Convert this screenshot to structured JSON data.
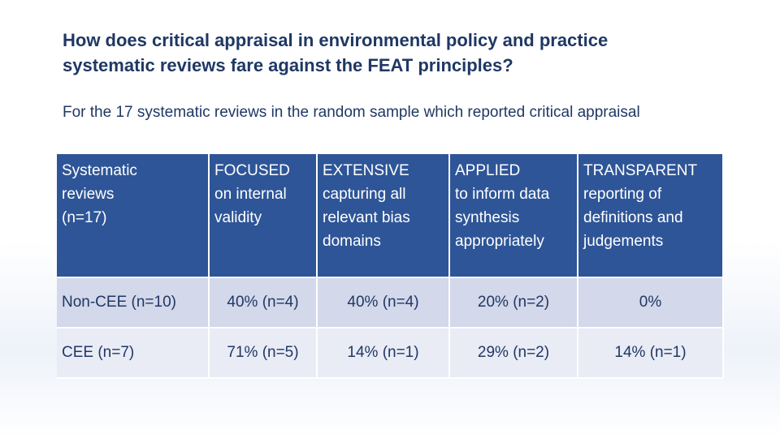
{
  "slide": {
    "title_line1": "How does critical appraisal in environmental policy and practice",
    "title_line2": "systematic reviews fare against the FEAT principles?",
    "subtitle": "For the 17 systematic reviews in the random sample which reported critical appraisal"
  },
  "table": {
    "header": {
      "stub": [
        "Systematic",
        "reviews",
        "(n=17)"
      ],
      "focused": [
        "FOCUSED",
        "on internal",
        "validity"
      ],
      "extensive": [
        "EXTENSIVE",
        "capturing all",
        "relevant bias",
        "domains"
      ],
      "applied": [
        "APPLIED",
        "to inform data",
        "synthesis",
        "appropriately"
      ],
      "transparent": [
        "TRANSPARENT",
        "reporting of",
        "definitions and",
        "judgements"
      ]
    },
    "rows": [
      {
        "label": "Non-CEE (n=10)",
        "focused": "40% (n=4)",
        "extensive": "40% (n=4)",
        "applied": "20% (n=2)",
        "transparent": "0%"
      },
      {
        "label": "CEE (n=7)",
        "focused": "71% (n=5)",
        "extensive": "14% (n=1)",
        "applied": "29% (n=2)",
        "transparent": "14% (n=1)"
      }
    ]
  },
  "colors": {
    "header_bg": "#2e5597",
    "row1_bg": "#d3d8ea",
    "row2_bg": "#e9ebf5",
    "title_text": "#1f3864"
  }
}
